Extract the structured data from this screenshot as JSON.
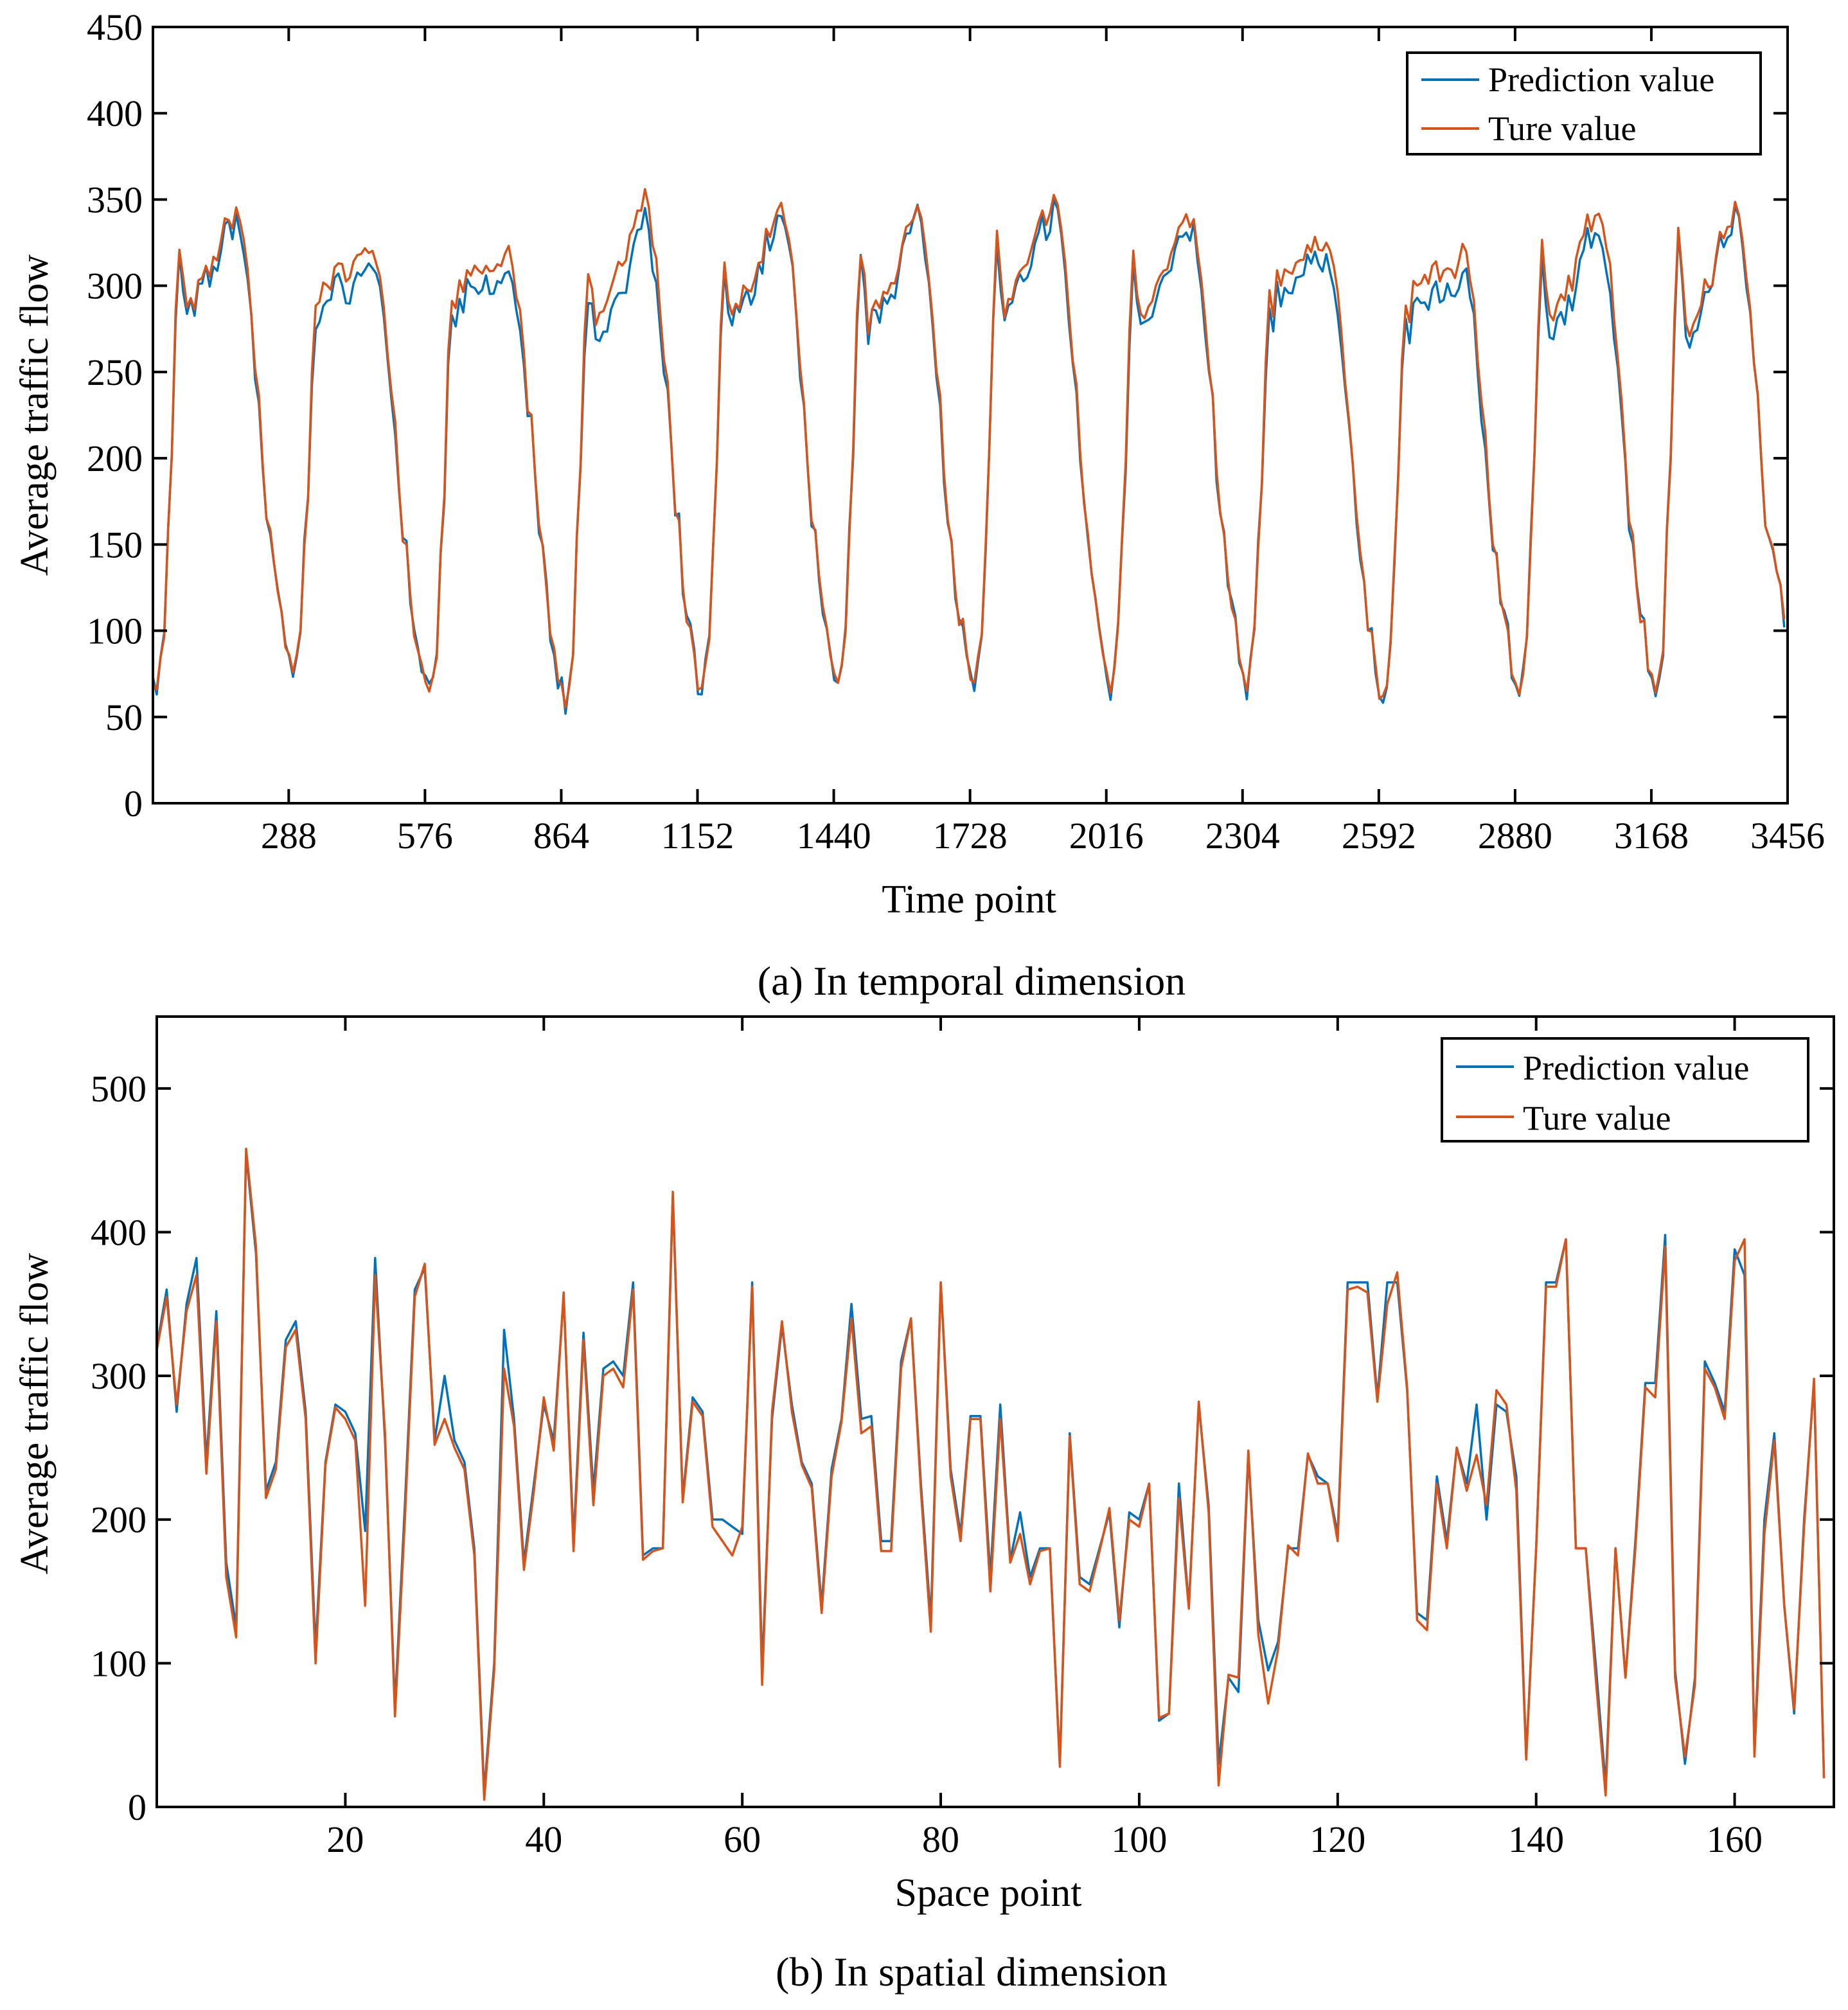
{
  "colors": {
    "prediction": "#0072BD",
    "true": "#D95319",
    "axis": "#000000",
    "background": "#FFFFFF"
  },
  "chart_data": [
    {
      "id": "temporal",
      "type": "line",
      "caption": "(a) In temporal dimension",
      "xlabel": "Time point",
      "ylabel": "Average traffic flow",
      "xlim": [
        1,
        3456
      ],
      "ylim": [
        0,
        450
      ],
      "xticks": [
        288,
        576,
        864,
        1152,
        1440,
        1728,
        2016,
        2304,
        2592,
        2880,
        3168,
        3456
      ],
      "yticks": [
        0,
        50,
        100,
        150,
        200,
        250,
        300,
        350,
        400,
        450
      ],
      "grid": false,
      "legend": {
        "position": "top-right",
        "entries": [
          "Prediction value",
          "Ture value"
        ]
      },
      "x_step": 8,
      "series": [
        {
          "name": "Prediction value",
          "color": "#0072BD"
        },
        {
          "name": "Ture value",
          "color": "#D95319"
        }
      ],
      "day_profiles": [
        {
          "min": 68,
          "morning": 330,
          "midday": 285,
          "evening": 345,
          "pred_bias": -4
        },
        {
          "min": 72,
          "morning": 300,
          "midday": 300,
          "evening": 326,
          "pred_bias": -10
        },
        {
          "min": 57,
          "morning": 300,
          "midday": 300,
          "evening": 320,
          "pred_bias": -10
        },
        {
          "min": 59,
          "morning": 320,
          "midday": 282,
          "evening": 350,
          "pred_bias": -14
        },
        {
          "min": 62,
          "morning": 318,
          "midday": 282,
          "evening": 345,
          "pred_bias": -4
        },
        {
          "min": 63,
          "morning": 330,
          "midday": 278,
          "evening": 343,
          "pred_bias": -4
        },
        {
          "min": 65,
          "morning": 335,
          "midday": 285,
          "evening": 352,
          "pred_bias": -6
        },
        {
          "min": 67,
          "morning": 328,
          "midday": 285,
          "evening": 340,
          "pred_bias": -6
        },
        {
          "min": 65,
          "morning": 305,
          "midday": 305,
          "evening": 332,
          "pred_bias": -10
        },
        {
          "min": 58,
          "morning": 300,
          "midday": 300,
          "evening": 320,
          "pred_bias": -12
        },
        {
          "min": 61,
          "morning": 328,
          "midday": 278,
          "evening": 348,
          "pred_bias": -12
        },
        {
          "min": 64,
          "morning": 338,
          "midday": 272,
          "evening": 345,
          "pred_bias": -4
        }
      ]
    },
    {
      "id": "spatial",
      "type": "line",
      "caption": "(b) In spatial dimension",
      "xlabel": "Space point",
      "ylabel": "Average traffic flow",
      "xlim": [
        1,
        170
      ],
      "ylim": [
        0,
        550
      ],
      "xticks": [
        20,
        40,
        60,
        80,
        100,
        120,
        140,
        160
      ],
      "yticks": [
        0,
        100,
        200,
        300,
        400,
        500
      ],
      "grid": false,
      "legend": {
        "position": "top-right",
        "entries": [
          "Prediction value",
          "Ture value"
        ]
      },
      "x_start": 1,
      "series": [
        {
          "name": "Prediction value",
          "color": "#0072BD",
          "values": [
            320,
            360,
            275,
            350,
            382,
            240,
            345,
            170,
            125,
            455,
            385,
            220,
            240,
            325,
            338,
            275,
            110,
            240,
            280,
            275,
            260,
            192,
            382,
            255,
            70,
            210,
            360,
            375,
            255,
            300,
            255,
            240,
            180,
            10,
            100,
            332,
            270,
            170,
            225,
            280,
            255,
            355,
            185,
            330,
            220,
            305,
            310,
            300,
            365,
            175,
            180,
            180,
            425,
            215,
            285,
            275,
            200,
            200,
            195,
            190,
            365,
            95,
            270,
            335,
            280,
            240,
            225,
            140,
            235,
            270,
            350,
            270,
            272,
            185,
            185,
            310,
            340,
            225,
            130,
            365,
            235,
            190,
            272,
            272,
            160,
            280,
            172,
            205,
            160,
            180,
            180,
            30,
            260,
            160,
            155,
            180,
            205,
            125,
            205,
            200,
            225,
            60,
            65,
            225,
            140,
            280,
            210,
            30,
            90,
            80,
            245,
            130,
            95,
            115,
            180,
            180,
            245,
            230,
            225,
            190,
            365,
            365,
            365,
            285,
            365,
            365,
            290,
            135,
            130,
            230,
            185,
            250,
            225,
            280,
            200,
            280,
            275,
            230,
            35,
            180,
            365,
            365,
            395,
            180,
            180,
            100,
            15,
            180,
            90,
            185,
            295,
            295,
            398,
            95,
            30,
            90,
            310,
            295,
            275,
            388,
            370,
            40,
            200,
            260,
            140,
            65,
            200,
            295,
            20
          ]
        },
        {
          "name": "Ture value",
          "color": "#D95319",
          "values": [
            318,
            355,
            280,
            345,
            370,
            232,
            338,
            160,
            118,
            458,
            390,
            215,
            235,
            320,
            332,
            270,
            100,
            238,
            278,
            270,
            255,
            140,
            370,
            260,
            63,
            200,
            355,
            378,
            252,
            270,
            250,
            235,
            175,
            5,
            95,
            305,
            265,
            165,
            220,
            285,
            248,
            358,
            178,
            325,
            210,
            300,
            305,
            292,
            360,
            172,
            178,
            180,
            428,
            212,
            282,
            272,
            195,
            185,
            175,
            195,
            362,
            85,
            275,
            338,
            275,
            238,
            222,
            135,
            230,
            268,
            340,
            260,
            265,
            178,
            178,
            305,
            340,
            220,
            122,
            365,
            230,
            185,
            270,
            270,
            150,
            270,
            170,
            190,
            155,
            178,
            180,
            28,
            258,
            155,
            150,
            178,
            208,
            130,
            200,
            195,
            225,
            62,
            65,
            215,
            138,
            282,
            205,
            15,
            92,
            90,
            248,
            120,
            72,
            110,
            182,
            175,
            246,
            225,
            225,
            185,
            360,
            362,
            358,
            282,
            350,
            372,
            292,
            130,
            123,
            225,
            180,
            250,
            220,
            245,
            210,
            290,
            280,
            220,
            33,
            180,
            362,
            362,
            395,
            180,
            180,
            90,
            8,
            180,
            90,
            180,
            292,
            285,
            390,
            90,
            35,
            85,
            305,
            292,
            270,
            380,
            395,
            35,
            190,
            255,
            140,
            68,
            195,
            298,
            20
          ]
        }
      ]
    }
  ]
}
